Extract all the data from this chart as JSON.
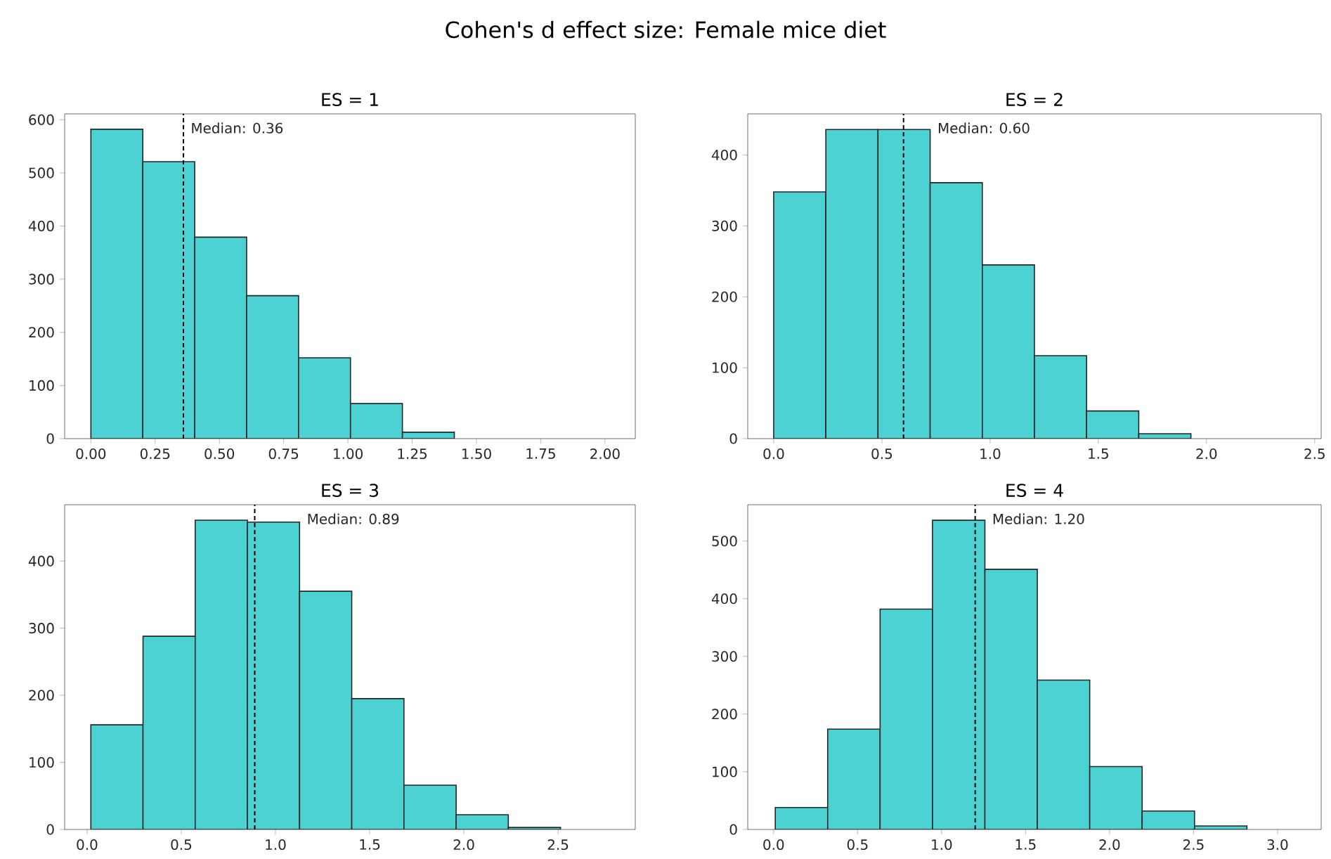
{
  "chart_data": [
    {
      "type": "histogram",
      "title": "ES = 1",
      "annotations": [
        "Cohen's d effect size: Female mice diet"
      ],
      "bins": [
        0,
        0.202,
        0.404,
        0.606,
        0.808,
        1.01,
        1.212,
        1.414,
        1.616,
        1.818,
        2.02
      ],
      "values": [
        582,
        521,
        379,
        269,
        152,
        66,
        12,
        0,
        0,
        0
      ],
      "color": "#4dd2d4",
      "xlim": [
        -0.102,
        2.118
      ],
      "ylim": [
        0,
        611
      ],
      "xticks": [
        {
          "value": 0,
          "label": "0.00"
        },
        {
          "value": 0.25,
          "label": "0.25"
        },
        {
          "value": 0.5,
          "label": "0.50"
        },
        {
          "value": 0.75,
          "label": "0.75"
        },
        {
          "value": 1,
          "label": "1.00"
        },
        {
          "value": 1.25,
          "label": "1.25"
        },
        {
          "value": 1.5,
          "label": "1.50"
        },
        {
          "value": 1.75,
          "label": "1.75"
        },
        {
          "value": 2,
          "label": "2.00"
        }
      ],
      "yticks": [
        0,
        100,
        200,
        300,
        400,
        500,
        600
      ],
      "ref_lines": [
        {
          "axis": "x",
          "value": 0.36,
          "label": "Median: 0.36",
          "color": "#000000",
          "line_style": "dashed"
        }
      ]
    },
    {
      "type": "histogram",
      "title": "ES = 2",
      "bins": [
        0,
        0.241,
        0.482,
        0.723,
        0.964,
        1.205,
        1.446,
        1.687,
        1.928,
        2.169,
        2.41
      ],
      "values": [
        348,
        436,
        436,
        361,
        245,
        117,
        39,
        7,
        0,
        0
      ],
      "color": "#4dd2d4",
      "xlim": [
        -0.12,
        2.53
      ],
      "ylim": [
        0,
        458
      ],
      "xticks": [
        {
          "value": 0,
          "label": "0.0"
        },
        {
          "value": 0.5,
          "label": "0.5"
        },
        {
          "value": 1,
          "label": "1.0"
        },
        {
          "value": 1.5,
          "label": "1.5"
        },
        {
          "value": 2,
          "label": "2.0"
        },
        {
          "value": 2.5,
          "label": "2.5"
        }
      ],
      "yticks": [
        0,
        100,
        200,
        300,
        400
      ],
      "ref_lines": [
        {
          "axis": "x",
          "value": 0.6,
          "label": "Median: 0.60",
          "color": "#000000",
          "line_style": "dashed"
        }
      ]
    },
    {
      "type": "histogram",
      "title": "ES = 3",
      "bins": [
        0.02,
        0.297,
        0.574,
        0.851,
        1.128,
        1.405,
        1.682,
        1.959,
        2.236,
        2.513,
        2.79
      ],
      "values": [
        156,
        288,
        461,
        458,
        355,
        195,
        66,
        22,
        3,
        0
      ],
      "color": "#4dd2d4",
      "xlim": [
        -0.119,
        2.91
      ],
      "ylim": [
        0,
        484
      ],
      "xticks": [
        {
          "value": 0,
          "label": "0.0"
        },
        {
          "value": 0.5,
          "label": "0.5"
        },
        {
          "value": 1,
          "label": "1.0"
        },
        {
          "value": 1.5,
          "label": "1.5"
        },
        {
          "value": 2,
          "label": "2.0"
        },
        {
          "value": 2.5,
          "label": "2.5"
        }
      ],
      "yticks": [
        0,
        100,
        200,
        300,
        400
      ],
      "ref_lines": [
        {
          "axis": "x",
          "value": 0.89,
          "label": "Median: 0.89",
          "color": "#000000",
          "line_style": "dashed"
        }
      ]
    },
    {
      "type": "histogram",
      "title": "ES = 4",
      "bins": [
        0.01,
        0.322,
        0.634,
        0.946,
        1.258,
        1.57,
        1.882,
        2.194,
        2.506,
        2.818,
        3.13
      ],
      "values": [
        38,
        174,
        382,
        536,
        451,
        259,
        109,
        32,
        6,
        0
      ],
      "color": "#4dd2d4",
      "xlim": [
        -0.154,
        3.26
      ],
      "ylim": [
        0,
        563
      ],
      "xticks": [
        {
          "value": 0,
          "label": "0.0"
        },
        {
          "value": 0.5,
          "label": "0.5"
        },
        {
          "value": 1,
          "label": "1.0"
        },
        {
          "value": 1.5,
          "label": "1.5"
        },
        {
          "value": 2,
          "label": "2.0"
        },
        {
          "value": 2.5,
          "label": "2.5"
        },
        {
          "value": 3,
          "label": "3.0"
        }
      ],
      "yticks": [
        0,
        100,
        200,
        300,
        400,
        500
      ],
      "ref_lines": [
        {
          "axis": "x",
          "value": 1.2,
          "label": "Median: 1.20",
          "color": "#000000",
          "line_style": "dashed"
        }
      ]
    }
  ]
}
